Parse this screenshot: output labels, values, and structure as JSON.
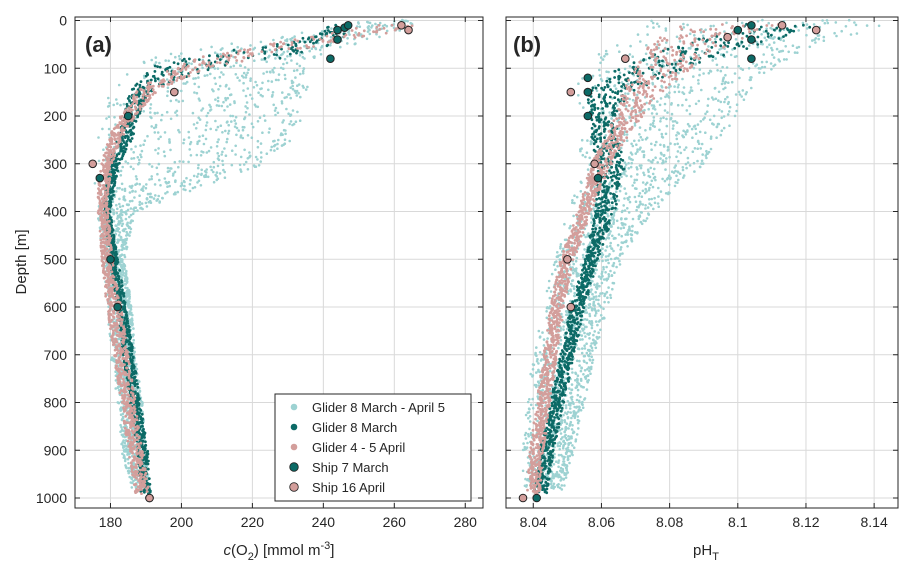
{
  "chart_data": [
    {
      "type": "scatter",
      "panel_label": "(a)",
      "xlabel": "c(O2) [mmol m-3]",
      "xlabel_parts": {
        "italic": "c",
        "pre": "(O",
        "sub": "2",
        "mid": ") [mmol m",
        "sup": "-3",
        "post": "]"
      },
      "ylabel": "Depth [m]",
      "xlim": [
        170,
        285
      ],
      "ylim": [
        0,
        1000
      ],
      "y_reversed": true,
      "grid": true,
      "xticks": [
        180,
        200,
        220,
        240,
        260,
        280
      ],
      "yticks": [
        0,
        100,
        200,
        300,
        400,
        500,
        600,
        700,
        800,
        900,
        1000
      ],
      "legend_position": "bottom-right",
      "series": [
        {
          "name": "Glider 8 March - April 5",
          "color": "#9dd2d2",
          "marker": "dot",
          "depth": [
            0,
            20,
            50,
            75,
            100,
            125,
            150,
            175,
            200,
            250,
            300,
            330,
            400,
            500,
            600,
            700,
            800,
            900,
            980
          ],
          "x_min": [
            248,
            240,
            210,
            190,
            186,
            182,
            180,
            178,
            177,
            176,
            175,
            175,
            176,
            178,
            179,
            180,
            182,
            183,
            186
          ],
          "x_max": [
            268,
            262,
            250,
            238,
            236,
            236,
            236,
            233,
            234,
            232,
            224,
            212,
            187,
            184,
            186,
            187,
            189,
            190,
            191
          ]
        },
        {
          "name": "Glider 8 March",
          "color": "#0c6a66",
          "marker": "dot",
          "depth": [
            10,
            30,
            50,
            80,
            100,
            130,
            150,
            200,
            250,
            300,
            400,
            500,
            600,
            700,
            800,
            900,
            990
          ],
          "x": [
            245,
            242,
            236,
            214,
            200,
            192,
            188,
            186,
            184,
            181,
            179,
            181,
            183,
            185,
            187,
            189,
            190
          ],
          "spread": [
            3,
            4,
            9,
            14,
            10,
            4,
            3,
            2,
            2,
            1.5,
            1,
            1,
            1.5,
            1.5,
            1.5,
            1.5,
            1.5
          ]
        },
        {
          "name": "Glider 4 - 5 April",
          "color": "#d39e9b",
          "marker": "dot",
          "depth": [
            10,
            20,
            40,
            60,
            80,
            100,
            130,
            150,
            200,
            250,
            300,
            350,
            400,
            500,
            600,
            700,
            800,
            900,
            990
          ],
          "x": [
            262,
            254,
            240,
            226,
            212,
            203,
            194,
            190,
            185,
            181,
            179,
            178,
            178,
            179,
            181,
            183,
            185,
            187,
            189
          ],
          "spread": [
            5,
            7,
            9,
            9,
            8,
            6,
            4,
            3,
            2,
            2,
            1.5,
            1.5,
            1.5,
            1.5,
            2,
            2,
            2,
            2,
            2
          ]
        },
        {
          "name": "Ship 7 March",
          "color": "#0c6a66",
          "marker": "circle",
          "x": [
            246,
            247,
            244,
            244,
            242,
            185,
            177,
            180,
            182,
            191
          ],
          "depth": [
            15,
            10,
            20,
            40,
            80,
            200,
            330,
            500,
            600,
            1000
          ]
        },
        {
          "name": "Ship 16 April",
          "color": "#d39e9b",
          "marker": "circle",
          "x": [
            262,
            264,
            198,
            175,
            191
          ],
          "depth": [
            10,
            20,
            150,
            300,
            1000
          ]
        }
      ]
    },
    {
      "type": "scatter",
      "panel_label": "(b)",
      "xlabel": "pHT",
      "xlabel_parts": {
        "pre": "pH",
        "sub": "T"
      },
      "ylabel": "",
      "xlim": [
        8.032,
        8.147
      ],
      "ylim": [
        0,
        1000
      ],
      "y_reversed": true,
      "grid": true,
      "xticks": [
        8.04,
        8.06,
        8.08,
        8.1,
        8.12,
        8.14
      ],
      "xtick_labels": [
        "8.04",
        "8.06",
        "8.08",
        "8.1",
        "8.12",
        "8.14"
      ],
      "yticks": [
        0,
        100,
        200,
        300,
        400,
        500,
        600,
        700,
        800,
        900,
        1000
      ],
      "series": [
        {
          "name": "Glider 8 March - April 5",
          "color": "#9dd2d2",
          "marker": "dot",
          "depth": [
            0,
            30,
            60,
            100,
            150,
            200,
            300,
            400,
            500,
            600,
            700,
            800,
            900,
            980
          ],
          "x_min": [
            8.075,
            8.068,
            8.06,
            8.054,
            8.052,
            8.053,
            8.054,
            8.05,
            8.046,
            8.043,
            8.04,
            8.038,
            8.037,
            8.037
          ],
          "x_max": [
            8.145,
            8.135,
            8.12,
            8.11,
            8.103,
            8.1,
            8.09,
            8.075,
            8.066,
            8.062,
            8.058,
            8.055,
            8.052,
            8.049
          ]
        },
        {
          "name": "Glider 8 March",
          "color": "#0c6a66",
          "marker": "dot",
          "depth": [
            10,
            50,
            100,
            150,
            200,
            250,
            300,
            400,
            500,
            600,
            700,
            800,
            900,
            990
          ],
          "x": [
            8.113,
            8.095,
            8.075,
            8.062,
            8.06,
            8.061,
            8.063,
            8.061,
            8.057,
            8.053,
            8.05,
            8.047,
            8.044,
            8.042
          ],
          "spread": [
            0.012,
            0.012,
            0.01,
            0.006,
            0.004,
            0.004,
            0.004,
            0.003,
            0.002,
            0.002,
            0.002,
            0.002,
            0.002,
            0.002
          ]
        },
        {
          "name": "Glider 4 - 5 April",
          "color": "#d39e9b",
          "marker": "dot",
          "depth": [
            10,
            50,
            100,
            150,
            200,
            250,
            300,
            400,
            500,
            600,
            700,
            800,
            900,
            990
          ],
          "x": [
            8.098,
            8.085,
            8.078,
            8.072,
            8.068,
            8.064,
            8.06,
            8.055,
            8.05,
            8.047,
            8.045,
            8.043,
            8.041,
            8.04
          ],
          "spread": [
            0.014,
            0.012,
            0.008,
            0.006,
            0.004,
            0.003,
            0.003,
            0.002,
            0.002,
            0.002,
            0.002,
            0.002,
            0.002,
            0.002
          ]
        },
        {
          "name": "Ship 7 March",
          "color": "#0c6a66",
          "marker": "circle",
          "x": [
            8.104,
            8.104,
            8.104,
            8.1,
            8.056,
            8.056,
            8.056,
            8.059,
            8.041
          ],
          "depth": [
            10,
            40,
            80,
            20,
            120,
            150,
            200,
            330,
            1000
          ]
        },
        {
          "name": "Ship 16 April",
          "color": "#d39e9b",
          "marker": "circle",
          "x": [
            8.113,
            8.123,
            8.097,
            8.067,
            8.051,
            8.058,
            8.05,
            8.051,
            8.037
          ],
          "depth": [
            10,
            20,
            35,
            80,
            150,
            300,
            500,
            600,
            1000
          ]
        }
      ]
    }
  ]
}
